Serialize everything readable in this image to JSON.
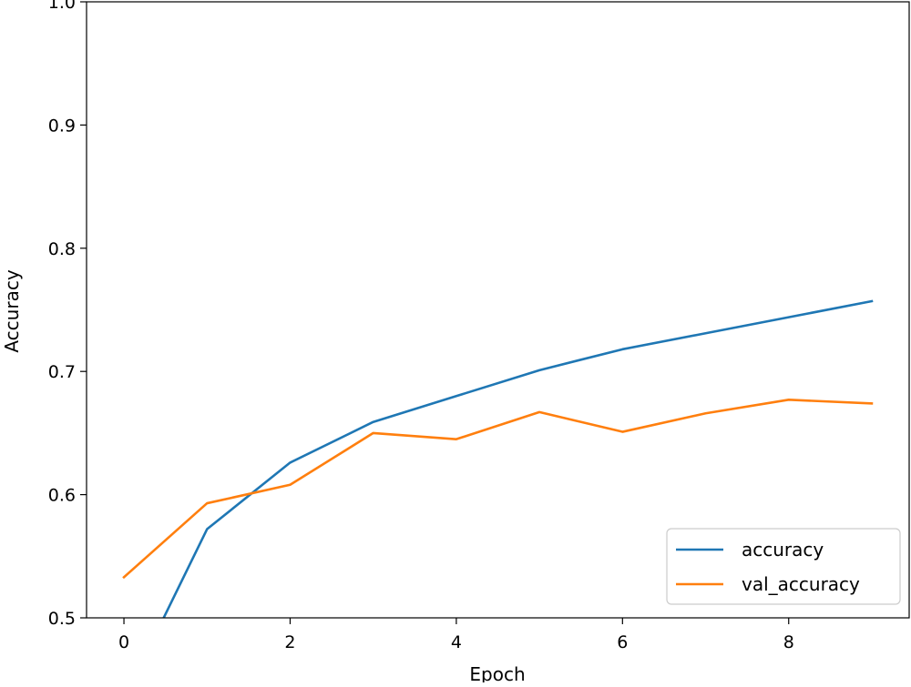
{
  "chart_data": {
    "type": "line",
    "title": "",
    "xlabel": "Epoch",
    "ylabel": "Accuracy",
    "xlim": [
      -0.45,
      9.45
    ],
    "ylim": [
      0.5,
      1.0
    ],
    "x_ticks": [
      0,
      2,
      4,
      6,
      8
    ],
    "y_ticks": [
      0.5,
      0.6,
      0.7,
      0.8,
      0.9,
      1.0
    ],
    "x_tick_labels": [
      "0",
      "2",
      "4",
      "6",
      "8"
    ],
    "y_tick_labels": [
      "0.5",
      "0.6",
      "0.7",
      "0.8",
      "0.9",
      "1.0"
    ],
    "x": [
      0,
      1,
      2,
      3,
      4,
      5,
      6,
      7,
      8,
      9
    ],
    "series": [
      {
        "name": "accuracy",
        "color": "#1f77b4",
        "values": [
          0.434,
          0.572,
          0.626,
          0.659,
          0.68,
          0.701,
          0.718,
          0.731,
          0.744,
          0.757
        ]
      },
      {
        "name": "val_accuracy",
        "color": "#ff7f0e",
        "values": [
          0.533,
          0.593,
          0.608,
          0.65,
          0.645,
          0.667,
          0.651,
          0.666,
          0.677,
          0.674
        ]
      }
    ],
    "grid": false,
    "legend_position": "lower-right"
  }
}
